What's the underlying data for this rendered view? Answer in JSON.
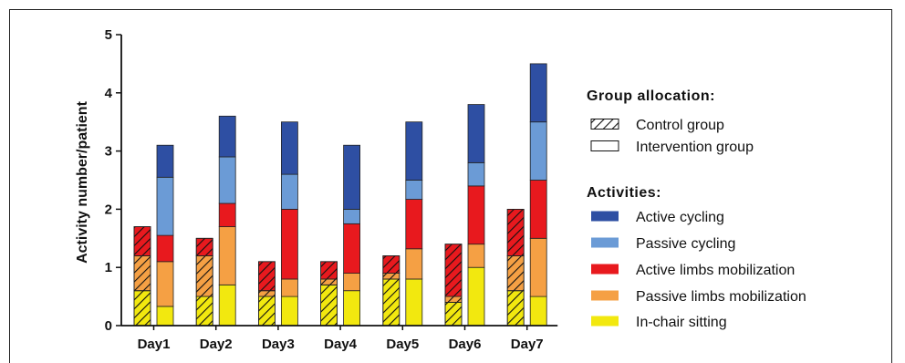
{
  "chart_data": {
    "type": "bar",
    "stacked": true,
    "ylabel": "Activity number/patient",
    "xlabel": "",
    "ylim": [
      0,
      5
    ],
    "yticks": [
      0,
      1,
      2,
      3,
      4,
      5
    ],
    "categories": [
      "Day1",
      "Day2",
      "Day3",
      "Day4",
      "Day5",
      "Day6",
      "Day7"
    ],
    "groups": [
      {
        "name": "Control group",
        "pattern": "hatched",
        "stacks": [
          {
            "in_chair_sitting": 0.6,
            "passive_limbs_mobilization": 0.6,
            "active_limbs_mobilization": 0.5,
            "passive_cycling": 0,
            "active_cycling": 0
          },
          {
            "in_chair_sitting": 0.5,
            "passive_limbs_mobilization": 0.7,
            "active_limbs_mobilization": 0.3,
            "passive_cycling": 0,
            "active_cycling": 0
          },
          {
            "in_chair_sitting": 0.5,
            "passive_limbs_mobilization": 0.1,
            "active_limbs_mobilization": 0.5,
            "passive_cycling": 0,
            "active_cycling": 0
          },
          {
            "in_chair_sitting": 0.7,
            "passive_limbs_mobilization": 0.1,
            "active_limbs_mobilization": 0.3,
            "passive_cycling": 0,
            "active_cycling": 0
          },
          {
            "in_chair_sitting": 0.8,
            "passive_limbs_mobilization": 0.1,
            "active_limbs_mobilization": 0.3,
            "passive_cycling": 0,
            "active_cycling": 0
          },
          {
            "in_chair_sitting": 0.4,
            "passive_limbs_mobilization": 0.1,
            "active_limbs_mobilization": 0.9,
            "passive_cycling": 0,
            "active_cycling": 0
          },
          {
            "in_chair_sitting": 0.6,
            "passive_limbs_mobilization": 0.6,
            "active_limbs_mobilization": 0.8,
            "passive_cycling": 0,
            "active_cycling": 0
          }
        ]
      },
      {
        "name": "Intervention group",
        "pattern": "solid",
        "stacks": [
          {
            "in_chair_sitting": 0.33,
            "passive_limbs_mobilization": 0.77,
            "active_limbs_mobilization": 0.45,
            "passive_cycling": 1.0,
            "active_cycling": 0.55
          },
          {
            "in_chair_sitting": 0.7,
            "passive_limbs_mobilization": 1.0,
            "active_limbs_mobilization": 0.4,
            "passive_cycling": 0.8,
            "active_cycling": 0.7
          },
          {
            "in_chair_sitting": 0.5,
            "passive_limbs_mobilization": 0.3,
            "active_limbs_mobilization": 1.2,
            "passive_cycling": 0.6,
            "active_cycling": 0.9
          },
          {
            "in_chair_sitting": 0.6,
            "passive_limbs_mobilization": 0.3,
            "active_limbs_mobilization": 0.85,
            "passive_cycling": 0.25,
            "active_cycling": 1.1
          },
          {
            "in_chair_sitting": 0.8,
            "passive_limbs_mobilization": 0.52,
            "active_limbs_mobilization": 0.85,
            "passive_cycling": 0.33,
            "active_cycling": 1.0
          },
          {
            "in_chair_sitting": 1.0,
            "passive_limbs_mobilization": 0.4,
            "active_limbs_mobilization": 1.0,
            "passive_cycling": 0.4,
            "active_cycling": 1.0
          },
          {
            "in_chair_sitting": 0.5,
            "passive_limbs_mobilization": 1.0,
            "active_limbs_mobilization": 1.0,
            "passive_cycling": 1.0,
            "active_cycling": 1.0
          }
        ]
      }
    ],
    "activities": [
      {
        "key": "active_cycling",
        "name": "Active cycling",
        "color": "#2e4fa3"
      },
      {
        "key": "passive_cycling",
        "name": "Passive cycling",
        "color": "#6b9bd6"
      },
      {
        "key": "active_limbs_mobilization",
        "name": "Active limbs mobilization",
        "color": "#e8191e"
      },
      {
        "key": "passive_limbs_mobilization",
        "name": "Passive limbs mobilization",
        "color": "#f5a044"
      },
      {
        "key": "in_chair_sitting",
        "name": "In-chair sitting",
        "color": "#f2e80f"
      }
    ],
    "legend": {
      "placement": "right",
      "group_heading": "Group allocation:",
      "activity_heading": "Activities:"
    },
    "grid": false
  }
}
